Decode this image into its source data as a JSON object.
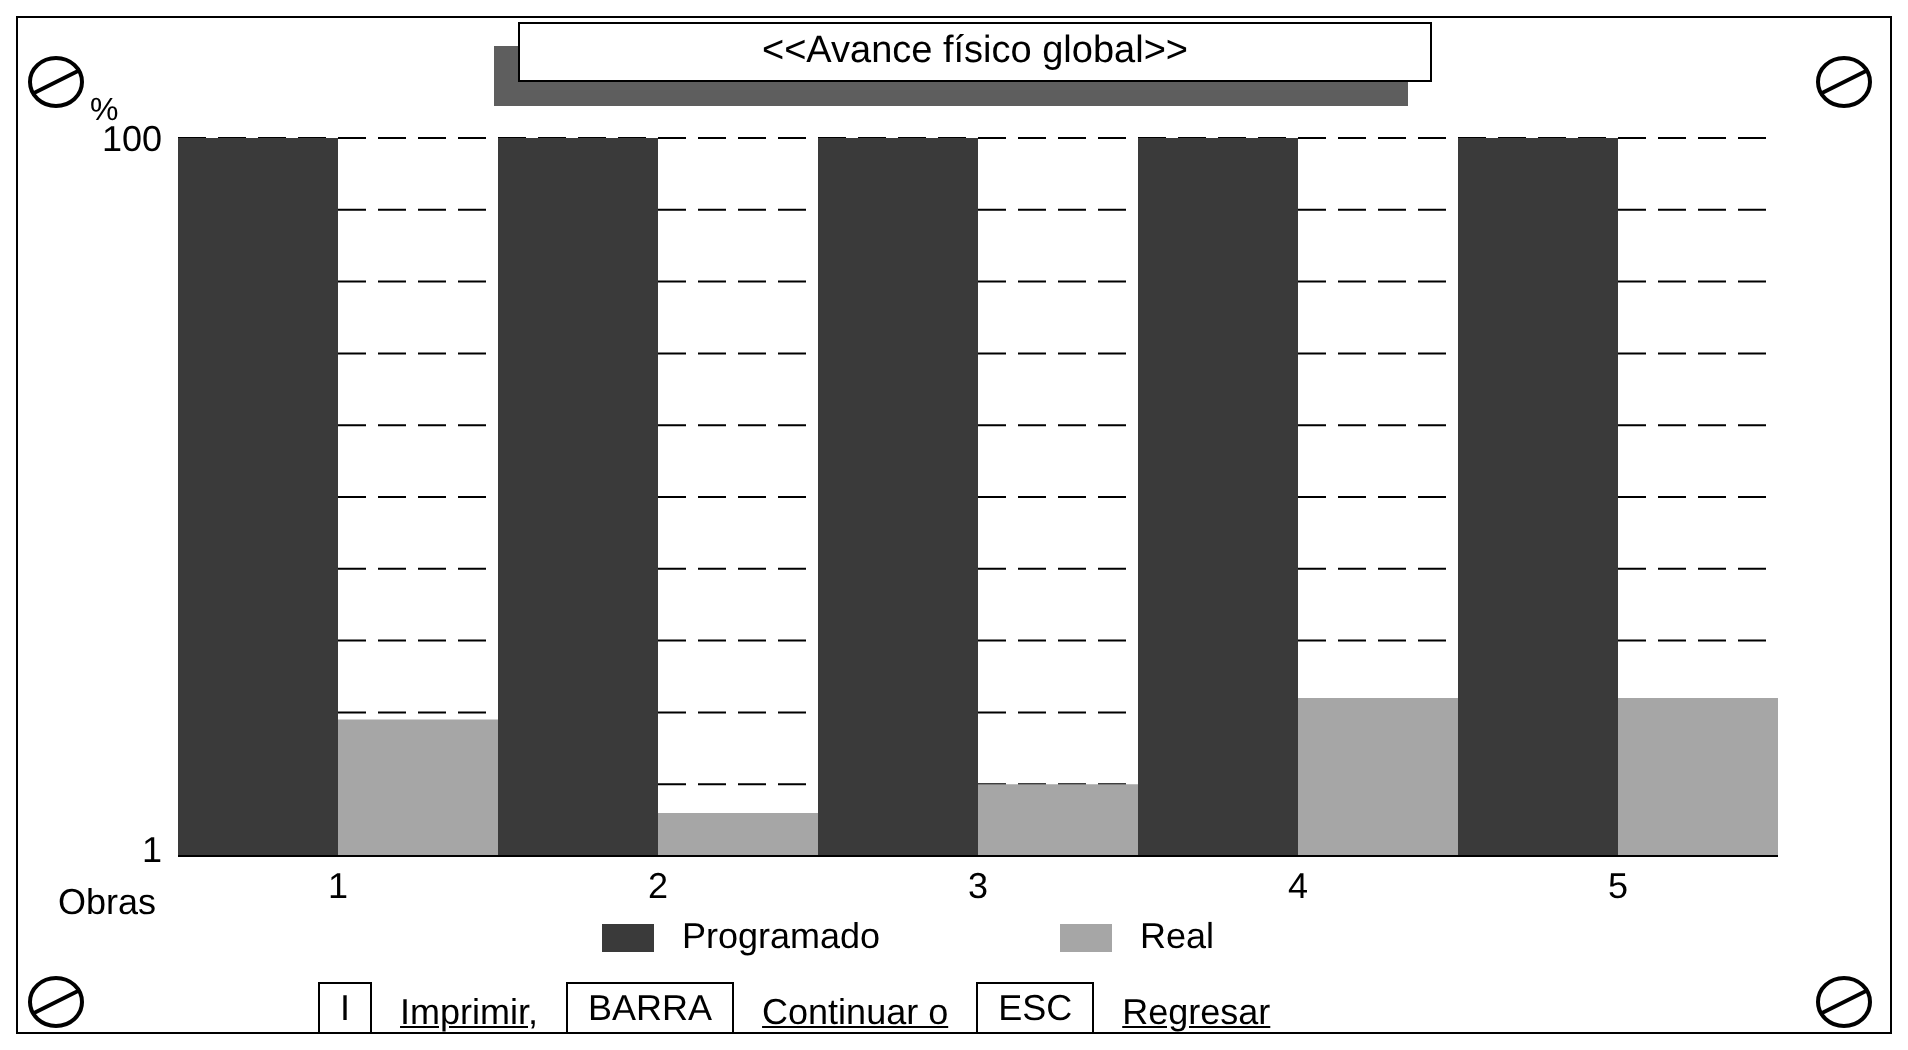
{
  "chart_data": {
    "type": "bar",
    "title": "<<Avance físico global>>",
    "ylabel": "%",
    "xlabel": "Obras",
    "categories": [
      "1",
      "2",
      "3",
      "4",
      "5"
    ],
    "series": [
      {
        "name": "Programado",
        "color": "#3a3a3a",
        "values": [
          100,
          100,
          100,
          100,
          100
        ]
      },
      {
        "name": "Real",
        "color": "#a6a6a6",
        "values": [
          19,
          6,
          10,
          22,
          22
        ]
      }
    ],
    "ylim": [
      0,
      100
    ],
    "yticks": [
      1,
      {
        "value": 10,
        "label": null
      },
      {
        "value": 20,
        "label": null
      },
      {
        "value": 30,
        "label": null
      },
      {
        "value": 40,
        "label": null
      },
      {
        "value": 50,
        "label": null
      },
      {
        "value": 60,
        "label": null
      },
      {
        "value": 70,
        "label": null
      },
      {
        "value": 80,
        "label": null
      },
      {
        "value": 90,
        "label": null
      },
      100
    ],
    "grid": "y",
    "legend": "bottom",
    "annotations": [
      "I",
      "Imprimir,",
      "BARRA",
      "Continuar o",
      "ESC",
      "Regresar"
    ]
  }
}
